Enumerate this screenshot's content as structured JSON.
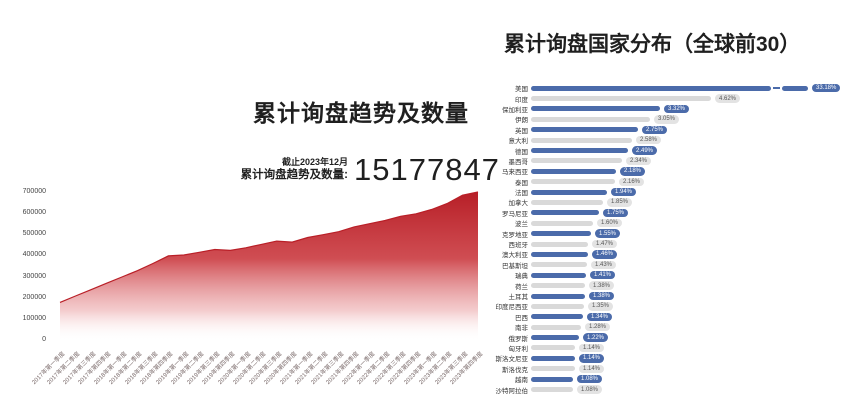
{
  "page": {
    "background": "#ffffff"
  },
  "colors": {
    "area_red": "#b91f27",
    "bar_blue": "#4b6baa",
    "bar_gray": "#d9d9d9",
    "badge_gray_bg": "#e3e3e3",
    "badge_gray_text": "#555555",
    "badge_blue_text": "#ffffff",
    "text_dark": "#1f1f1f"
  },
  "left_chart": {
    "title": "累计询盘趋势及数量",
    "stat": {
      "as_of": "截止2023年12月",
      "label": "累计询盘趋势及数量:",
      "value": "15177847"
    }
  },
  "right_chart": {
    "title": "累计询盘国家分布（全球前30）"
  },
  "chart_data": [
    {
      "type": "area",
      "title": "累计询盘趋势及数量",
      "annotation": "截止2023年12月 累计询盘趋势及数量: 15177847",
      "x": [
        "2017年第一季度",
        "2017年第二季度",
        "2017年第三季度",
        "2017年第四季度",
        "2018年第一季度",
        "2018年第二季度",
        "2018年第三季度",
        "2018年第四季度",
        "2019年第一季度",
        "2019年第二季度",
        "2019年第三季度",
        "2019年第四季度",
        "2020年第一季度",
        "2020年第二季度",
        "2020年第三季度",
        "2020年第四季度",
        "2021年第一季度",
        "2021年第二季度",
        "2021年第三季度",
        "2021年第四季度",
        "2022年第一季度",
        "2022年第二季度",
        "2022年第三季度",
        "2022年第四季度",
        "2023年第一季度",
        "2023年第二季度",
        "2023年第三季度",
        "2023年第四季度"
      ],
      "values": [
        178000,
        208000,
        238000,
        268000,
        298000,
        328000,
        362000,
        398000,
        402000,
        415000,
        428000,
        424000,
        436000,
        452000,
        468000,
        463000,
        485000,
        498000,
        512000,
        535000,
        550000,
        565000,
        585000,
        597000,
        617000,
        645000,
        685000,
        700000
      ],
      "ylim": [
        0,
        700000
      ],
      "yticks": [
        0,
        100000,
        200000,
        300000,
        400000,
        500000,
        600000,
        700000
      ],
      "grid": false,
      "legend": "none",
      "fill_top_color": "#b91f27",
      "fill_bottom_color": "#ffffff"
    },
    {
      "type": "bar",
      "orientation": "horizontal",
      "title": "累计询盘国家分布（全球前30）",
      "unit": "%",
      "axis_break_on_first_bar": true,
      "bar_colors_alternate": [
        "#4b6baa",
        "#d9d9d9"
      ],
      "categories": [
        "美国",
        "印度",
        "保加利亚",
        "伊朗",
        "英国",
        "意大利",
        "德国",
        "墨西哥",
        "马来西亚",
        "泰国",
        "法国",
        "加拿大",
        "罗马尼亚",
        "波兰",
        "克罗地亚",
        "西班牙",
        "澳大利亚",
        "巴基斯坦",
        "瑞典",
        "荷兰",
        "土耳其",
        "印度尼西亚",
        "巴西",
        "南非",
        "俄罗斯",
        "匈牙利",
        "斯洛文尼亚",
        "斯洛伐克",
        "越南",
        "沙特阿拉伯"
      ],
      "values": [
        33.18,
        4.62,
        3.32,
        3.05,
        2.75,
        2.58,
        2.49,
        2.34,
        2.18,
        2.16,
        1.94,
        1.85,
        1.75,
        1.6,
        1.55,
        1.47,
        1.46,
        1.43,
        1.41,
        1.38,
        1.38,
        1.35,
        1.34,
        1.28,
        1.22,
        1.14,
        1.14,
        1.14,
        1.08,
        1.08
      ]
    }
  ]
}
